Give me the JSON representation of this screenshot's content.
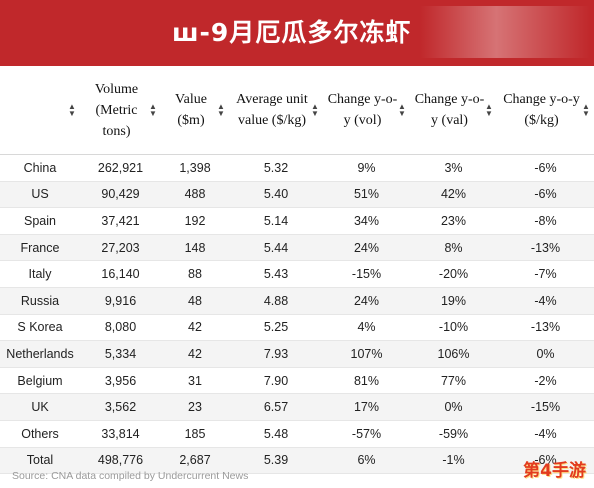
{
  "banner": {
    "title": "ш-9月厄瓜多尔冻虾"
  },
  "table": {
    "headers": [
      "",
      "Volume (Metric tons)",
      "Value ($m)",
      "Average unit value ($/kg)",
      "Change y-o-y (vol)",
      "Change y-o-y (val)",
      "Change y-o-y ($/kg)"
    ],
    "rows": [
      [
        "China",
        "262,921",
        "1,398",
        "5.32",
        "9%",
        "3%",
        "-6%"
      ],
      [
        "US",
        "90,429",
        "488",
        "5.40",
        "51%",
        "42%",
        "-6%"
      ],
      [
        "Spain",
        "37,421",
        "192",
        "5.14",
        "34%",
        "23%",
        "-8%"
      ],
      [
        "France",
        "27,203",
        "148",
        "5.44",
        "24%",
        "8%",
        "-13%"
      ],
      [
        "Italy",
        "16,140",
        "88",
        "5.43",
        "-15%",
        "-20%",
        "-7%"
      ],
      [
        "Russia",
        "9,916",
        "48",
        "4.88",
        "24%",
        "19%",
        "-4%"
      ],
      [
        "S Korea",
        "8,080",
        "42",
        "5.25",
        "4%",
        "-10%",
        "-13%"
      ],
      [
        "Netherlands",
        "5,334",
        "42",
        "7.93",
        "107%",
        "106%",
        "0%"
      ],
      [
        "Belgium",
        "3,956",
        "31",
        "7.90",
        "81%",
        "77%",
        "-2%"
      ],
      [
        "UK",
        "3,562",
        "23",
        "6.57",
        "17%",
        "0%",
        "-15%"
      ],
      [
        "Others",
        "33,814",
        "185",
        "5.48",
        "-57%",
        "-59%",
        "-4%"
      ],
      [
        "Total",
        "498,776",
        "2,687",
        "5.39",
        "6%",
        "-1%",
        "-6%"
      ]
    ]
  },
  "source": "Source: CNA data compiled by Undercurrent News",
  "watermark": "第4手游",
  "colors": {
    "banner": "#c0282b",
    "zebra": "#f4f4f4",
    "watermark": "#e23b1f"
  }
}
